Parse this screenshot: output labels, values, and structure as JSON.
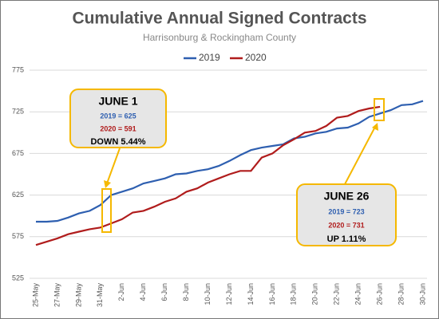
{
  "chart_data": {
    "type": "line",
    "title": "Cumulative Annual Signed Contracts",
    "subtitle": "Harrisonburg & Rockingham County",
    "categories": [
      "25-May",
      null,
      "27-May",
      null,
      "29-May",
      null,
      "31-May",
      null,
      "2-Jun",
      null,
      "4-Jun",
      null,
      "6-Jun",
      null,
      "8-Jun",
      null,
      "10-Jun",
      null,
      "12-Jun",
      null,
      "14-Jun",
      null,
      "16-Jun",
      null,
      "18-Jun",
      null,
      "20-Jun",
      null,
      "22-Jun",
      null,
      "24-Jun",
      null,
      "26-Jun",
      null,
      "28-Jun",
      null,
      "30-Jun"
    ],
    "series": [
      {
        "name": "2019",
        "color": "#2e5fb0",
        "values": [
          593,
          593,
          594,
          598,
          603,
          606,
          613,
          625,
          629,
          633,
          639,
          642,
          645,
          650,
          651,
          654,
          656,
          660,
          666,
          673,
          679,
          682,
          684,
          686,
          693,
          695,
          699,
          701,
          705,
          706,
          711,
          719,
          723,
          727,
          733,
          734,
          738
        ]
      },
      {
        "name": "2020",
        "color": "#b01c1c",
        "values": [
          565,
          569,
          573,
          578,
          581,
          584,
          586,
          591,
          596,
          604,
          606,
          611,
          617,
          621,
          629,
          633,
          640,
          645,
          650,
          654,
          654,
          670,
          675,
          685,
          692,
          700,
          702,
          708,
          718,
          720,
          726,
          729,
          731,
          null,
          null,
          null,
          null
        ]
      }
    ],
    "ylim": [
      525,
      775
    ],
    "yticks": [
      525,
      575,
      625,
      675,
      725,
      775
    ],
    "grid": true,
    "legend": "top",
    "annotations": [
      {
        "lines": [
          "JUNE 1",
          "2019 = 625",
          "2020 = 591",
          "DOWN 5.44%"
        ]
      },
      {
        "lines": [
          "JUNE 26",
          "2019 = 723",
          "2020 = 731",
          "UP 1.11%"
        ]
      }
    ]
  }
}
